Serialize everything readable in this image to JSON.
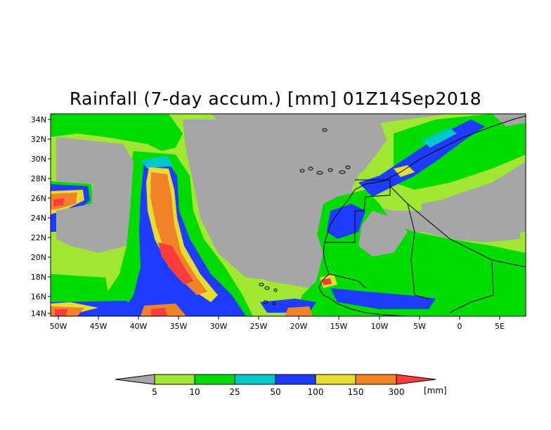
{
  "title": "Rainfall (7-day accum.) [mm] 01Z14Sep2018",
  "map": {
    "lon_labels": [
      "50W",
      "45W",
      "40W",
      "35W",
      "30W",
      "25W",
      "20W",
      "15W",
      "10W",
      "5W",
      "0",
      "5E"
    ],
    "lat_labels": [
      "34N",
      "32N",
      "30N",
      "28N",
      "26N",
      "24N",
      "22N",
      "20N",
      "18N",
      "16N",
      "14N"
    ],
    "lon_range": [
      -51,
      8
    ],
    "lat_range": [
      13.7,
      35
    ],
    "colors": {
      "background": "#a6a6a6",
      "level_5": "#a0e632",
      "level_10": "#00dc00",
      "level_25": "#00c8c8",
      "level_50": "#1e3cff",
      "level_100": "#e6dc32",
      "level_150": "#f08228",
      "level_300": "#fa3c3c",
      "below": "#a6a6a6"
    }
  },
  "colorbar": {
    "labels": [
      "5",
      "10",
      "25",
      "50",
      "100",
      "150",
      "300"
    ],
    "unit": "[mm]"
  }
}
